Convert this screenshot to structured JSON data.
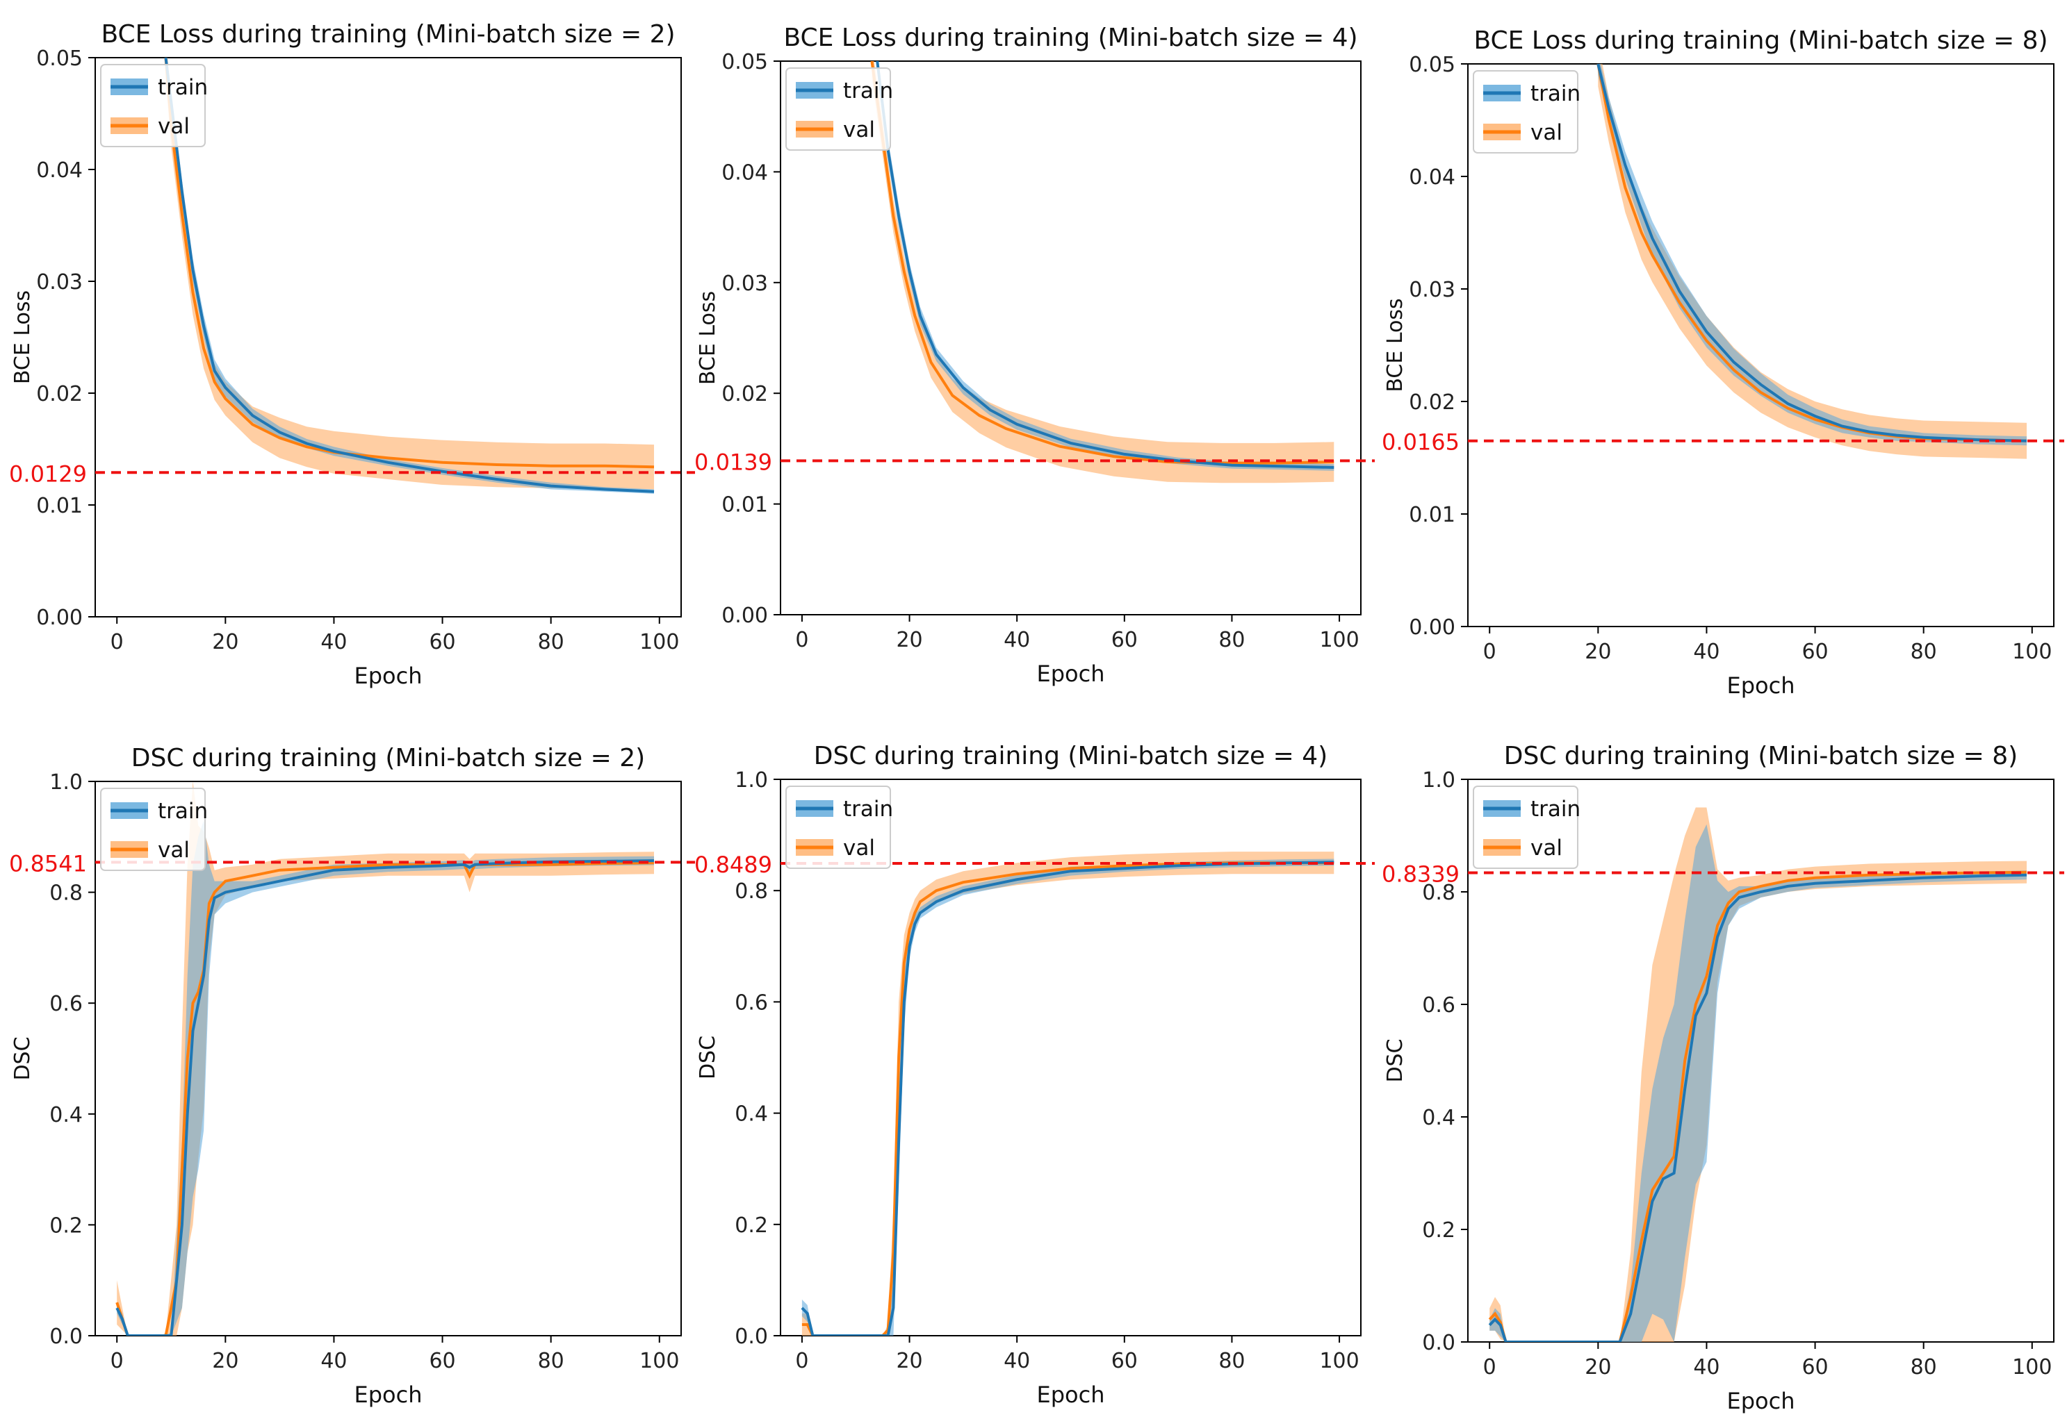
{
  "colors": {
    "train": "#1f77b4",
    "val": "#ff7f0e",
    "reference": "#ee1111",
    "train_band": "#5aa6da",
    "val_band": "#ffae66"
  },
  "chart_data": [
    {
      "type": "line",
      "title": "BCE Loss during training (Mini-batch size = 2)",
      "xlabel": "Epoch",
      "ylabel": "BCE Loss",
      "xlim": [
        -4,
        104
      ],
      "ylim": [
        0.0,
        0.05
      ],
      "xticks": [
        "0",
        "20",
        "40",
        "60",
        "80",
        "100"
      ],
      "yticks": [
        "0.00",
        "0.01",
        "0.02",
        "0.03",
        "0.04",
        "0.05"
      ],
      "reference_value": 0.0129,
      "reference_label": "0.0129",
      "legend": {
        "train": "train",
        "val": "val"
      },
      "series": [
        {
          "name": "train",
          "x": [
            9,
            10,
            12,
            14,
            16,
            18,
            20,
            25,
            30,
            35,
            40,
            50,
            60,
            70,
            80,
            90,
            99
          ],
          "y": [
            0.05,
            0.046,
            0.038,
            0.031,
            0.026,
            0.022,
            0.0205,
            0.018,
            0.0165,
            0.0155,
            0.0148,
            0.0138,
            0.013,
            0.0123,
            0.0117,
            0.0114,
            0.0112
          ],
          "band": [
            0.001,
            0.001,
            0.001,
            0.001,
            0.001,
            0.001,
            0.0008,
            0.0006,
            0.0005,
            0.0004,
            0.0004,
            0.0003,
            0.0003,
            0.0003,
            0.0003,
            0.0002,
            0.0002
          ]
        },
        {
          "name": "val",
          "x": [
            9,
            10,
            12,
            14,
            16,
            18,
            20,
            25,
            30,
            35,
            40,
            50,
            60,
            70,
            80,
            90,
            99
          ],
          "y": [
            0.05,
            0.044,
            0.036,
            0.029,
            0.024,
            0.021,
            0.0195,
            0.0172,
            0.016,
            0.0152,
            0.0147,
            0.0142,
            0.0138,
            0.0136,
            0.0135,
            0.0135,
            0.0134
          ],
          "band": [
            0.002,
            0.002,
            0.002,
            0.002,
            0.0018,
            0.0016,
            0.0015,
            0.0016,
            0.0018,
            0.0018,
            0.0019,
            0.0019,
            0.002,
            0.002,
            0.002,
            0.002,
            0.002
          ]
        }
      ]
    },
    {
      "type": "line",
      "title": "BCE Loss during training (Mini-batch size = 4)",
      "xlabel": "Epoch",
      "ylabel": "BCE Loss",
      "xlim": [
        -4,
        104
      ],
      "ylim": [
        0.0,
        0.05
      ],
      "xticks": [
        "0",
        "20",
        "40",
        "60",
        "80",
        "100"
      ],
      "yticks": [
        "0.00",
        "0.01",
        "0.02",
        "0.03",
        "0.04",
        "0.05"
      ],
      "reference_value": 0.0139,
      "reference_label": "0.0139",
      "legend": {
        "train": "train",
        "val": "val"
      },
      "series": [
        {
          "name": "train",
          "x": [
            14,
            16,
            18,
            20,
            22,
            25,
            30,
            35,
            40,
            50,
            60,
            70,
            80,
            90,
            99
          ],
          "y": [
            0.05,
            0.042,
            0.036,
            0.031,
            0.027,
            0.0235,
            0.0205,
            0.0185,
            0.0172,
            0.0155,
            0.0145,
            0.0139,
            0.0135,
            0.0134,
            0.0133
          ],
          "band": [
            0.001,
            0.001,
            0.001,
            0.0008,
            0.0008,
            0.0006,
            0.0006,
            0.0005,
            0.0005,
            0.0004,
            0.0004,
            0.0003,
            0.0003,
            0.0003,
            0.0003
          ]
        },
        {
          "name": "val",
          "x": [
            13,
            15,
            17,
            19,
            21,
            24,
            28,
            33,
            38,
            48,
            58,
            68,
            78,
            88,
            99
          ],
          "y": [
            0.05,
            0.043,
            0.036,
            0.031,
            0.027,
            0.0228,
            0.0198,
            0.018,
            0.0168,
            0.0152,
            0.0143,
            0.0138,
            0.0137,
            0.0137,
            0.0138
          ],
          "band": [
            0.0015,
            0.0015,
            0.0015,
            0.0014,
            0.0014,
            0.0014,
            0.0015,
            0.0016,
            0.0017,
            0.0018,
            0.0018,
            0.0018,
            0.0018,
            0.0018,
            0.0018
          ]
        }
      ]
    },
    {
      "type": "line",
      "title": "BCE Loss during training (Mini-batch size = 8)",
      "xlabel": "Epoch",
      "ylabel": "BCE Loss",
      "xlim": [
        -4,
        104
      ],
      "ylim": [
        0.0,
        0.05
      ],
      "xticks": [
        "0",
        "20",
        "40",
        "60",
        "80",
        "100"
      ],
      "yticks": [
        "0.00",
        "0.01",
        "0.02",
        "0.03",
        "0.04",
        "0.05"
      ],
      "reference_value": 0.0165,
      "reference_label": "0.0165",
      "legend": {
        "train": "train",
        "val": "val"
      },
      "series": [
        {
          "name": "train",
          "x": [
            20,
            22,
            25,
            28,
            30,
            35,
            40,
            45,
            50,
            55,
            60,
            65,
            70,
            75,
            80,
            90,
            99
          ],
          "y": [
            0.05,
            0.046,
            0.041,
            0.037,
            0.0345,
            0.0298,
            0.0262,
            0.0235,
            0.0215,
            0.0198,
            0.0187,
            0.0178,
            0.0173,
            0.017,
            0.0168,
            0.0166,
            0.0165
          ],
          "band": [
            0.001,
            0.001,
            0.0012,
            0.0014,
            0.0015,
            0.0015,
            0.0014,
            0.0012,
            0.001,
            0.0008,
            0.0007,
            0.0006,
            0.0005,
            0.0005,
            0.0004,
            0.0004,
            0.0004
          ]
        },
        {
          "name": "val",
          "x": [
            20,
            22,
            25,
            28,
            30,
            35,
            40,
            45,
            50,
            55,
            60,
            65,
            70,
            75,
            80,
            90,
            99
          ],
          "y": [
            0.05,
            0.045,
            0.039,
            0.035,
            0.033,
            0.0288,
            0.0254,
            0.0228,
            0.0208,
            0.0194,
            0.0184,
            0.0177,
            0.0172,
            0.0169,
            0.0167,
            0.0166,
            0.0165
          ],
          "band": [
            0.002,
            0.002,
            0.0022,
            0.0024,
            0.0024,
            0.0023,
            0.0022,
            0.002,
            0.0018,
            0.0017,
            0.0016,
            0.0016,
            0.0016,
            0.0016,
            0.0016,
            0.0016,
            0.0016
          ]
        }
      ]
    },
    {
      "type": "line",
      "title": "DSC during training (Mini-batch size = 2)",
      "xlabel": "Epoch",
      "ylabel": "DSC",
      "xlim": [
        -4,
        104
      ],
      "ylim": [
        0.0,
        1.0
      ],
      "xticks": [
        "0",
        "20",
        "40",
        "60",
        "80",
        "100"
      ],
      "yticks": [
        "0.0",
        "0.2",
        "0.4",
        "0.6",
        "0.8",
        "1.0"
      ],
      "reference_value": 0.8541,
      "reference_label": "0.8541",
      "legend": {
        "train": "train",
        "val": "val"
      },
      "series": [
        {
          "name": "train",
          "x": [
            0,
            1,
            2,
            8,
            10,
            12,
            13,
            14,
            15,
            16,
            17,
            18,
            20,
            25,
            30,
            40,
            50,
            60,
            64,
            65,
            66,
            70,
            80,
            90,
            99
          ],
          "y": [
            0.05,
            0.03,
            0.0,
            0.0,
            0.0,
            0.2,
            0.4,
            0.55,
            0.6,
            0.65,
            0.75,
            0.79,
            0.8,
            0.81,
            0.82,
            0.84,
            0.845,
            0.848,
            0.85,
            0.845,
            0.85,
            0.852,
            0.855,
            0.856,
            0.857
          ],
          "band": [
            0.01,
            0.01,
            0,
            0,
            0.005,
            0.15,
            0.25,
            0.3,
            0.3,
            0.28,
            0.1,
            0.03,
            0.02,
            0.01,
            0.01,
            0.01,
            0.008,
            0.008,
            0.008,
            0.008,
            0.008,
            0.008,
            0.008,
            0.008,
            0.008
          ]
        },
        {
          "name": "val",
          "x": [
            0,
            1,
            2,
            8,
            9,
            11,
            12,
            13,
            14,
            15,
            16,
            17,
            18,
            20,
            25,
            30,
            40,
            50,
            60,
            64,
            65,
            66,
            70,
            80,
            90,
            99
          ],
          "y": [
            0.06,
            0.03,
            0.0,
            0.0,
            0.0,
            0.1,
            0.3,
            0.5,
            0.6,
            0.62,
            0.66,
            0.78,
            0.8,
            0.82,
            0.83,
            0.84,
            0.845,
            0.85,
            0.85,
            0.85,
            0.83,
            0.85,
            0.85,
            0.85,
            0.852,
            0.853
          ],
          "band": [
            0.04,
            0.02,
            0,
            0,
            0.005,
            0.1,
            0.25,
            0.35,
            0.4,
            0.3,
            0.25,
            0.1,
            0.04,
            0.025,
            0.02,
            0.02,
            0.02,
            0.02,
            0.02,
            0.02,
            0.03,
            0.02,
            0.02,
            0.02,
            0.02,
            0.02
          ]
        }
      ]
    },
    {
      "type": "line",
      "title": "DSC during training (Mini-batch size = 4)",
      "xlabel": "Epoch",
      "ylabel": "DSC",
      "xlim": [
        -4,
        104
      ],
      "ylim": [
        0.0,
        1.0
      ],
      "xticks": [
        "0",
        "20",
        "40",
        "60",
        "80",
        "100"
      ],
      "yticks": [
        "0.0",
        "0.2",
        "0.4",
        "0.6",
        "0.8",
        "1.0"
      ],
      "reference_value": 0.8489,
      "reference_label": "0.8489",
      "legend": {
        "train": "train",
        "val": "val"
      },
      "series": [
        {
          "name": "train",
          "x": [
            0,
            1,
            2,
            15,
            16,
            17,
            18,
            19,
            20,
            21,
            22,
            25,
            30,
            40,
            50,
            60,
            70,
            80,
            90,
            99
          ],
          "y": [
            0.05,
            0.04,
            0.0,
            0.0,
            0.0,
            0.05,
            0.35,
            0.6,
            0.7,
            0.74,
            0.76,
            0.78,
            0.8,
            0.82,
            0.835,
            0.84,
            0.845,
            0.848,
            0.85,
            0.851
          ],
          "band": [
            0.015,
            0.015,
            0,
            0,
            0.005,
            0.05,
            0.08,
            0.05,
            0.02,
            0.015,
            0.01,
            0.01,
            0.008,
            0.008,
            0.008,
            0.006,
            0.006,
            0.006,
            0.006,
            0.006
          ]
        },
        {
          "name": "val",
          "x": [
            0,
            1,
            2,
            15,
            16,
            17,
            18,
            19,
            20,
            21,
            22,
            25,
            30,
            40,
            50,
            60,
            70,
            80,
            90,
            99
          ],
          "y": [
            0.02,
            0.02,
            0.0,
            0.0,
            0.01,
            0.15,
            0.5,
            0.67,
            0.73,
            0.76,
            0.78,
            0.8,
            0.815,
            0.83,
            0.84,
            0.845,
            0.848,
            0.85,
            0.85,
            0.85
          ],
          "band": [
            0.02,
            0.02,
            0,
            0,
            0.01,
            0.08,
            0.1,
            0.05,
            0.03,
            0.025,
            0.02,
            0.02,
            0.02,
            0.02,
            0.02,
            0.02,
            0.02,
            0.02,
            0.02,
            0.02
          ]
        }
      ]
    },
    {
      "type": "line",
      "title": "DSC during training (Mini-batch size = 8)",
      "xlabel": "Epoch",
      "ylabel": "DSC",
      "xlim": [
        -4,
        104
      ],
      "ylim": [
        0.0,
        1.0
      ],
      "xticks": [
        "0",
        "20",
        "40",
        "60",
        "80",
        "100"
      ],
      "yticks": [
        "0.0",
        "0.2",
        "0.4",
        "0.6",
        "0.8",
        "1.0"
      ],
      "reference_value": 0.8339,
      "reference_label": "0.8339",
      "legend": {
        "train": "train",
        "val": "val"
      },
      "series": [
        {
          "name": "train",
          "x": [
            0,
            1,
            2,
            3,
            4,
            24,
            26,
            28,
            30,
            32,
            34,
            36,
            38,
            40,
            42,
            44,
            46,
            50,
            55,
            60,
            70,
            80,
            90,
            99
          ],
          "y": [
            0.03,
            0.04,
            0.03,
            0.0,
            0.0,
            0.0,
            0.05,
            0.15,
            0.25,
            0.29,
            0.3,
            0.45,
            0.58,
            0.62,
            0.72,
            0.77,
            0.79,
            0.8,
            0.81,
            0.815,
            0.82,
            0.825,
            0.828,
            0.83
          ],
          "band": [
            0.01,
            0.02,
            0.02,
            0,
            0,
            0,
            0.05,
            0.15,
            0.2,
            0.25,
            0.3,
            0.3,
            0.3,
            0.3,
            0.1,
            0.03,
            0.02,
            0.01,
            0.01,
            0.008,
            0.008,
            0.008,
            0.008,
            0.008
          ]
        },
        {
          "name": "val",
          "x": [
            0,
            1,
            2,
            3,
            4,
            24,
            26,
            28,
            30,
            32,
            34,
            36,
            38,
            40,
            42,
            44,
            46,
            50,
            55,
            60,
            70,
            80,
            90,
            99
          ],
          "y": [
            0.04,
            0.05,
            0.035,
            0.0,
            0.0,
            0.0,
            0.08,
            0.18,
            0.27,
            0.3,
            0.33,
            0.5,
            0.6,
            0.65,
            0.74,
            0.78,
            0.8,
            0.81,
            0.82,
            0.825,
            0.83,
            0.832,
            0.834,
            0.835
          ],
          "band": [
            0.02,
            0.03,
            0.03,
            0,
            0,
            0,
            0.08,
            0.3,
            0.4,
            0.45,
            0.5,
            0.4,
            0.35,
            0.3,
            0.1,
            0.04,
            0.025,
            0.02,
            0.02,
            0.02,
            0.02,
            0.02,
            0.02,
            0.02
          ]
        }
      ]
    }
  ]
}
